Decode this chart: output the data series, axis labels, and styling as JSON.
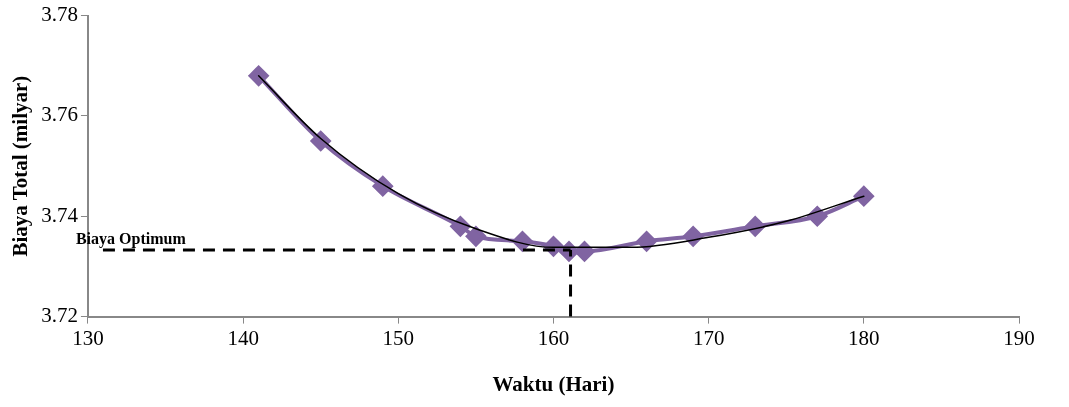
{
  "chart_data": {
    "type": "line",
    "xlabel": "Waktu (Hari)",
    "ylabel": "Biaya Total (milyar)",
    "xlim": [
      130,
      190
    ],
    "xticks": [
      130,
      140,
      150,
      160,
      170,
      180,
      190
    ],
    "ylim": [
      3.72,
      3.78
    ],
    "yticks": [
      3.72,
      3.74,
      3.76,
      3.78
    ],
    "marker": "diamond",
    "line_style": "solid",
    "series": [
      {
        "color": "#8064a2",
        "x": [
          141,
          145,
          149,
          154,
          155,
          158,
          160,
          161,
          162,
          166,
          169,
          173,
          177,
          180
        ],
        "values": [
          3.768,
          3.755,
          3.746,
          3.738,
          3.736,
          3.735,
          3.734,
          3.733,
          3.733,
          3.735,
          3.736,
          3.738,
          3.74,
          3.744
        ]
      },
      {
        "type": "line",
        "marker": "none",
        "color": "#000000",
        "x": [
          141,
          145,
          150,
          155,
          160,
          165,
          170,
          175,
          180
        ],
        "values": [
          3.768,
          3.7555,
          3.7445,
          3.7375,
          3.7338,
          3.7338,
          3.7358,
          3.739,
          3.744
        ]
      }
    ],
    "ref_lines": [
      {
        "axis": "y",
        "value": 3.7333,
        "label": "Biaya Optimum",
        "color": "#000000",
        "line_style": "dashed"
      },
      {
        "axis": "x",
        "value": 161.1,
        "color": "#000000",
        "line_style": "dashed"
      }
    ]
  }
}
